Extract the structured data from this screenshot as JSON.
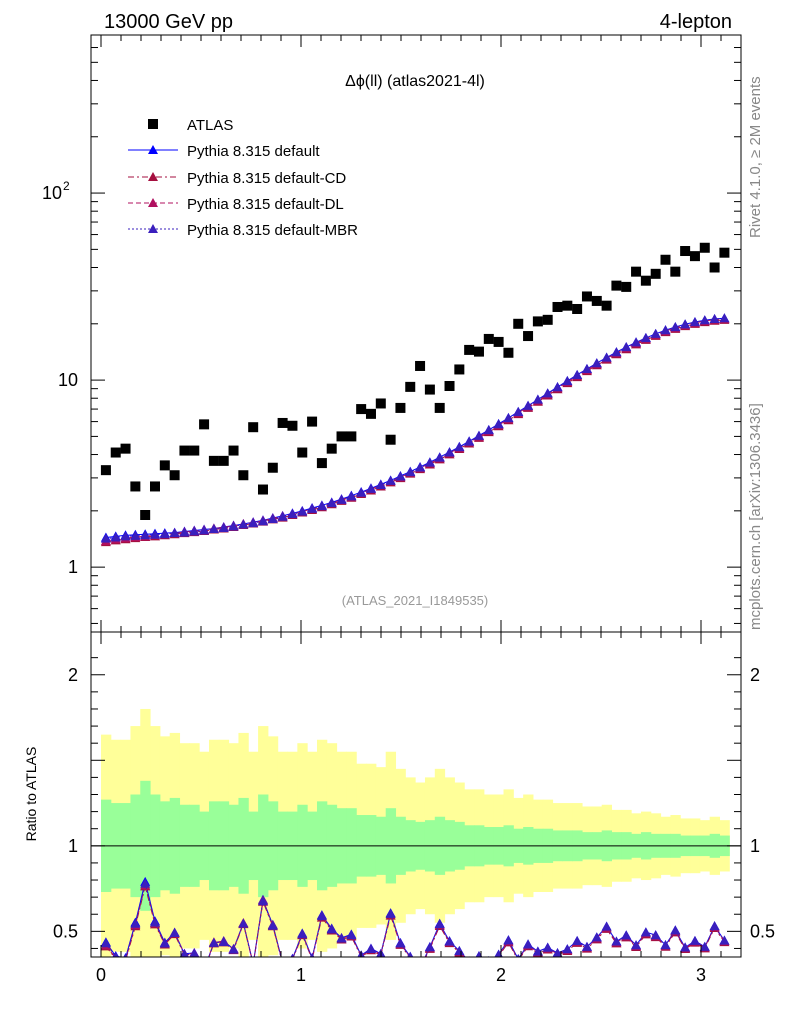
{
  "header": {
    "left_label": "13000 GeV pp",
    "right_label": "4-lepton",
    "side_label_top": "Rivet 4.1.0, ≥ 2M events",
    "side_label_bottom": "mcplots.cern.ch [arXiv:1306.3436]",
    "watermark": "(ATLAS_2021_I1849535)"
  },
  "colors": {
    "atlas": "#000000",
    "default": "#0000ff",
    "cd": "#a50f3f",
    "dl": "#b0105f",
    "mbr": "#3a1fbd",
    "band_inner": "#99ff99",
    "band_outer": "#ffff99"
  },
  "chart_data": {
    "type": "scatter",
    "title": "Δϕ(ll) (atlas2021-4l)",
    "xlabel": "",
    "ylabel": "",
    "xlim": [
      -0.05,
      3.2
    ],
    "ylim": [
      0.45,
      700
    ],
    "yscale": "log",
    "x_ticks": [
      "0",
      "1",
      "2",
      "3"
    ],
    "y_ticks": [
      "1",
      "10",
      "10^2"
    ],
    "legend": [
      "ATLAS",
      "Pythia 8.315 default",
      "Pythia 8.315 default-CD",
      "Pythia 8.315 default-DL",
      "Pythia 8.315 default-MBR"
    ],
    "atlas_values": [
      3.3,
      4.1,
      4.3,
      2.7,
      1.9,
      2.7,
      3.5,
      3.1,
      4.2,
      4.2,
      5.8,
      3.7,
      3.7,
      4.2,
      3.1,
      5.6,
      2.6,
      3.4,
      5.9,
      5.7,
      4.1,
      6.0,
      3.6,
      4.3,
      5.0,
      5.0,
      7.0,
      6.6,
      7.5,
      4.8,
      7.1,
      9.2,
      11.9,
      8.9,
      7.1,
      9.3,
      11.4,
      14.5,
      14.2,
      16.6,
      16.0,
      14.0,
      20.0,
      17.2,
      20.6,
      21.0,
      24.6,
      25.0,
      24.0,
      28.0,
      26.5,
      25.0,
      32.0,
      31.5,
      38.0,
      34.0,
      37.0,
      44.0,
      38.0,
      49.0,
      46.0,
      51.0,
      40.0,
      48.0
    ],
    "series": [
      {
        "name": "Pythia 8.315 default",
        "values": [
          1.44,
          1.46,
          1.48,
          1.49,
          1.5,
          1.51,
          1.52,
          1.53,
          1.55,
          1.57,
          1.59,
          1.61,
          1.64,
          1.67,
          1.7,
          1.74,
          1.78,
          1.83,
          1.88,
          1.94,
          2.0,
          2.07,
          2.14,
          2.22,
          2.31,
          2.41,
          2.52,
          2.64,
          2.77,
          2.91,
          3.07,
          3.24,
          3.43,
          3.64,
          3.87,
          4.12,
          4.4,
          4.71,
          5.05,
          5.42,
          5.83,
          6.28,
          6.77,
          7.3,
          7.88,
          8.51,
          9.18,
          9.9,
          10.67,
          11.48,
          12.33,
          13.21,
          14.11,
          15.02,
          15.93,
          16.82,
          17.68,
          18.49,
          19.23,
          19.89,
          20.45,
          20.9,
          21.23,
          21.43
        ]
      },
      {
        "name": "Pythia 8.315 default-CD",
        "values": [
          1.36,
          1.39,
          1.41,
          1.43,
          1.45,
          1.46,
          1.48,
          1.5,
          1.52,
          1.54,
          1.56,
          1.59,
          1.61,
          1.64,
          1.68,
          1.71,
          1.75,
          1.8,
          1.84,
          1.9,
          1.96,
          2.02,
          2.09,
          2.17,
          2.26,
          2.35,
          2.46,
          2.57,
          2.7,
          2.84,
          2.99,
          3.16,
          3.34,
          3.54,
          3.77,
          4.01,
          4.28,
          4.58,
          4.91,
          5.27,
          5.67,
          6.1,
          6.58,
          7.1,
          7.66,
          8.27,
          8.93,
          9.63,
          10.38,
          11.17,
          12.0,
          12.86,
          13.74,
          14.63,
          15.52,
          16.4,
          17.25,
          18.05,
          18.78,
          19.43,
          19.98,
          20.43,
          20.77,
          20.98
        ]
      },
      {
        "name": "Pythia 8.315 default-DL",
        "values": [
          1.38,
          1.41,
          1.43,
          1.45,
          1.46,
          1.48,
          1.5,
          1.52,
          1.54,
          1.56,
          1.58,
          1.61,
          1.63,
          1.66,
          1.7,
          1.73,
          1.77,
          1.82,
          1.87,
          1.92,
          1.98,
          2.05,
          2.12,
          2.2,
          2.29,
          2.38,
          2.49,
          2.61,
          2.74,
          2.88,
          3.03,
          3.2,
          3.39,
          3.59,
          3.82,
          4.07,
          4.34,
          4.65,
          4.98,
          5.35,
          5.75,
          6.19,
          6.67,
          7.2,
          7.77,
          8.39,
          9.06,
          9.77,
          10.53,
          11.33,
          12.17,
          13.04,
          13.93,
          14.83,
          15.73,
          16.62,
          17.47,
          18.28,
          19.02,
          19.68,
          20.24,
          20.7,
          21.04,
          21.25
        ]
      },
      {
        "name": "Pythia 8.315 default-MBR",
        "values": [
          1.42,
          1.44,
          1.46,
          1.47,
          1.48,
          1.49,
          1.5,
          1.52,
          1.53,
          1.55,
          1.57,
          1.6,
          1.62,
          1.65,
          1.69,
          1.72,
          1.76,
          1.81,
          1.86,
          1.92,
          1.98,
          2.05,
          2.12,
          2.2,
          2.29,
          2.39,
          2.5,
          2.62,
          2.75,
          2.89,
          3.05,
          3.22,
          3.41,
          3.62,
          3.85,
          4.1,
          4.38,
          4.69,
          5.03,
          5.4,
          5.81,
          6.26,
          6.75,
          7.28,
          7.86,
          8.49,
          9.16,
          9.88,
          10.65,
          11.46,
          12.31,
          13.19,
          14.09,
          15.0,
          15.91,
          16.8,
          17.66,
          18.47,
          19.21,
          19.87,
          20.43,
          20.88,
          21.21,
          21.41
        ]
      }
    ],
    "ratio": {
      "ylabel": "Ratio to ATLAS",
      "ylim": [
        0.35,
        2.25
      ],
      "y_ticks": [
        "0.5",
        "1",
        "2"
      ],
      "reference_line": 1,
      "band_inner_halfwidth": [
        0.27,
        0.25,
        0.25,
        0.3,
        0.38,
        0.3,
        0.26,
        0.28,
        0.24,
        0.24,
        0.2,
        0.26,
        0.26,
        0.24,
        0.28,
        0.2,
        0.3,
        0.26,
        0.2,
        0.2,
        0.24,
        0.2,
        0.26,
        0.24,
        0.22,
        0.22,
        0.18,
        0.18,
        0.17,
        0.22,
        0.17,
        0.15,
        0.14,
        0.15,
        0.17,
        0.15,
        0.14,
        0.12,
        0.12,
        0.11,
        0.11,
        0.12,
        0.1,
        0.11,
        0.1,
        0.1,
        0.09,
        0.09,
        0.09,
        0.08,
        0.08,
        0.09,
        0.08,
        0.08,
        0.07,
        0.08,
        0.07,
        0.07,
        0.07,
        0.06,
        0.06,
        0.06,
        0.07,
        0.06
      ],
      "band_outer_halfwidth": [
        0.65,
        0.62,
        0.62,
        0.7,
        0.8,
        0.7,
        0.64,
        0.66,
        0.6,
        0.6,
        0.55,
        0.62,
        0.62,
        0.6,
        0.66,
        0.55,
        0.7,
        0.64,
        0.55,
        0.55,
        0.6,
        0.55,
        0.62,
        0.6,
        0.55,
        0.55,
        0.48,
        0.48,
        0.46,
        0.55,
        0.45,
        0.4,
        0.37,
        0.4,
        0.45,
        0.4,
        0.37,
        0.33,
        0.33,
        0.3,
        0.3,
        0.33,
        0.28,
        0.3,
        0.27,
        0.27,
        0.25,
        0.25,
        0.25,
        0.23,
        0.23,
        0.24,
        0.21,
        0.21,
        0.19,
        0.2,
        0.19,
        0.17,
        0.18,
        0.16,
        0.16,
        0.15,
        0.17,
        0.15
      ]
    }
  }
}
